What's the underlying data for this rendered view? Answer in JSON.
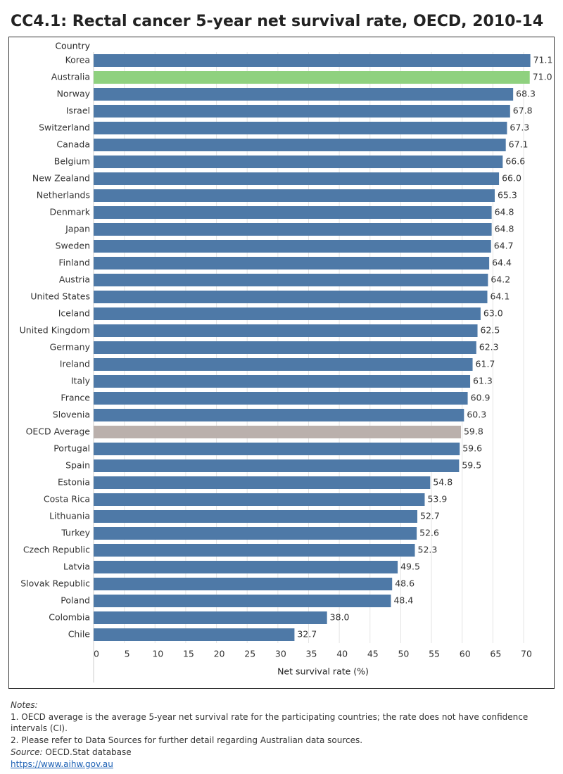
{
  "chart_data": {
    "type": "hbar",
    "title": "CC4.1: Rectal cancer 5-year net survival rate, OECD, 2010-14",
    "y_axis_label": "Country",
    "x_axis_label": "Net survival rate (%)",
    "categories": [
      "Korea",
      "Australia",
      "Norway",
      "Israel",
      "Switzerland",
      "Canada",
      "Belgium",
      "New Zealand",
      "Netherlands",
      "Denmark",
      "Japan",
      "Sweden",
      "Finland",
      "Austria",
      "United States",
      "Iceland",
      "United Kingdom",
      "Germany",
      "Ireland",
      "Italy",
      "France",
      "Slovenia",
      "OECD Average",
      "Portugal",
      "Spain",
      "Estonia",
      "Costa Rica",
      "Lithuania",
      "Turkey",
      "Czech Republic",
      "Latvia",
      "Slovak Republic",
      "Poland",
      "Colombia",
      "Chile"
    ],
    "values": [
      71.1,
      71.0,
      68.3,
      67.8,
      67.3,
      67.1,
      66.6,
      66.0,
      65.3,
      64.8,
      64.8,
      64.7,
      64.4,
      64.2,
      64.1,
      63.0,
      62.5,
      62.3,
      61.7,
      61.3,
      60.9,
      60.3,
      59.8,
      59.6,
      59.5,
      54.8,
      53.9,
      52.7,
      52.6,
      52.3,
      49.5,
      48.6,
      48.4,
      38.0,
      32.7
    ],
    "value_labels": [
      "71.1",
      "71.0",
      "68.3",
      "67.8",
      "67.3",
      "67.1",
      "66.6",
      "66.0",
      "65.3",
      "64.8",
      "64.8",
      "64.7",
      "64.4",
      "64.2",
      "64.1",
      "63.0",
      "62.5",
      "62.3",
      "61.7",
      "61.3",
      "60.9",
      "60.3",
      "59.8",
      "59.6",
      "59.5",
      "54.8",
      "53.9",
      "52.7",
      "52.6",
      "52.3",
      "49.5",
      "48.6",
      "48.4",
      "38.0",
      "32.7"
    ],
    "colors": [
      "#4e79a7",
      "#8fd17f",
      "#4e79a7",
      "#4e79a7",
      "#4e79a7",
      "#4e79a7",
      "#4e79a7",
      "#4e79a7",
      "#4e79a7",
      "#4e79a7",
      "#4e79a7",
      "#4e79a7",
      "#4e79a7",
      "#4e79a7",
      "#4e79a7",
      "#4e79a7",
      "#4e79a7",
      "#4e79a7",
      "#4e79a7",
      "#4e79a7",
      "#4e79a7",
      "#4e79a7",
      "#bab0ac",
      "#4e79a7",
      "#4e79a7",
      "#4e79a7",
      "#4e79a7",
      "#4e79a7",
      "#4e79a7",
      "#4e79a7",
      "#4e79a7",
      "#4e79a7",
      "#4e79a7",
      "#4e79a7",
      "#4e79a7"
    ],
    "xlim": [
      0,
      70
    ],
    "xticks": [
      0,
      5,
      10,
      15,
      20,
      25,
      30,
      35,
      40,
      45,
      50,
      55,
      60,
      65,
      70
    ],
    "grid": true
  },
  "notes": {
    "heading": "Notes:",
    "lines": [
      "1. OECD average is the average 5-year net survival rate for the participating countries; the rate does not have confidence intervals (CI).",
      "2. Please refer to Data Sources for further detail regarding Australian data sources."
    ],
    "source_label": "Source:",
    "source": "OECD.Stat database",
    "link": "https://www.aihw.gov.au"
  }
}
